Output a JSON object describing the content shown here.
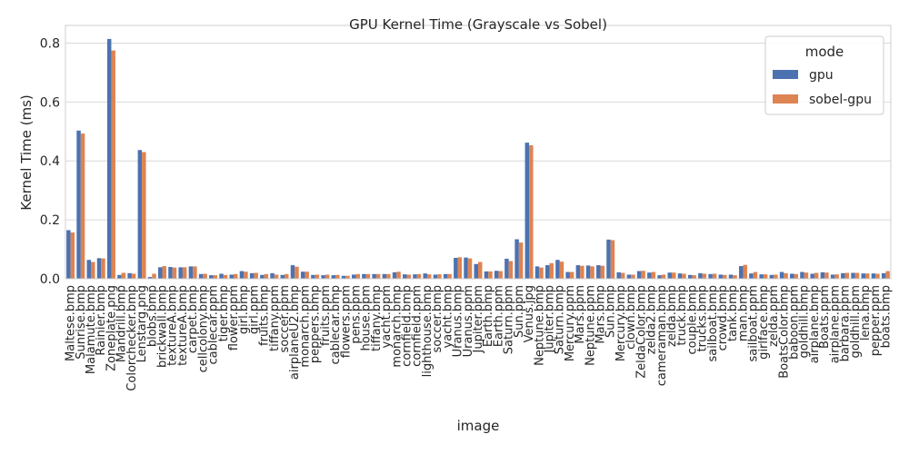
{
  "chart_data": {
    "type": "bar",
    "title": "GPU Kernel Time (Grayscale vs Sobel)",
    "xlabel": "image",
    "ylabel": "Kernel Time (ms)",
    "ylim": [
      0,
      0.86
    ],
    "yticks": [
      0.0,
      0.2,
      0.4,
      0.6,
      0.8
    ],
    "ytick_labels": [
      "0.0",
      "0.2",
      "0.4",
      "0.6",
      "0.8"
    ],
    "grid": true,
    "legend_title": "mode",
    "legend_position": "top-right",
    "categories": [
      "Maltese.bmp",
      "Sunrise.bmp",
      "Malamute.bmp",
      "Rainier.bmp",
      "Zoneplate.png",
      "Mandrill.bmp",
      "Colorchecker.bmp",
      "Lenstarg.png",
      "blobs.bmp",
      "brickwall.bmp",
      "textureA.bmp",
      "textureA.bmp",
      "carpet.bmp",
      "cellcolony.bmp",
      "cablecar.ppm",
      "tiger.bmp",
      "flower.ppm",
      "girl.bmp",
      "girl.ppm",
      "fruits.bmp",
      "tiffany.ppm",
      "soccer.ppm",
      "airplaneU2.bmp",
      "monarch.ppm",
      "peppers.bmp",
      "fruits.ppm",
      "cablecar.bmp",
      "flowers.ppm",
      "pens.ppm",
      "house.ppm",
      "tiffany.bmp",
      "yacht.ppm",
      "monarch.bmp",
      "cornfield.bmp",
      "cornfield.ppm",
      "lighthouse.bmp",
      "soccer.bmp",
      "yacht.bmp",
      "Uranus.bmp",
      "Uranus.ppm",
      "Jupiter.ppm",
      "Earth.bmp",
      "Earth.ppm",
      "Saturn.ppm",
      "Sun.ppm",
      "Venus.jpg",
      "Neptune.bmp",
      "Jupiter.bmp",
      "Saturn.bmp",
      "Mercury.ppm",
      "Mars.ppm",
      "Neptune.ppm",
      "Mars.bmp",
      "Sun.bmp",
      "Mercury.bmp",
      "clown.bmp",
      "ZeldaColor.bmp",
      "zelda2.bmp",
      "cameraman.bmp",
      "zelda.bmp",
      "truck.bmp",
      "couple.bmp",
      "trucks.bmp",
      "sailboat.bmp",
      "crowd.bmp",
      "tank.bmp",
      "man.bmp",
      "sailboat.ppm",
      "girlface.bmp",
      "zelda.ppm",
      "BoatsColor.bmp",
      "baboon.ppm",
      "goldhill.bmp",
      "airplane.bmp",
      "Boats.ppm",
      "airplane.ppm",
      "barbara.ppm",
      "goldhill.ppm",
      "lena.bmp",
      "pepper.ppm",
      "boats.bmp"
    ],
    "series": [
      {
        "name": "gpu",
        "color": "#4c72b0",
        "values": [
          0.165,
          0.503,
          0.064,
          0.07,
          0.814,
          0.013,
          0.019,
          0.437,
          0.006,
          0.039,
          0.04,
          0.039,
          0.042,
          0.016,
          0.012,
          0.017,
          0.014,
          0.026,
          0.019,
          0.013,
          0.019,
          0.013,
          0.046,
          0.024,
          0.013,
          0.012,
          0.012,
          0.01,
          0.014,
          0.016,
          0.016,
          0.016,
          0.022,
          0.015,
          0.015,
          0.018,
          0.014,
          0.016,
          0.071,
          0.072,
          0.05,
          0.025,
          0.027,
          0.068,
          0.134,
          0.462,
          0.042,
          0.046,
          0.064,
          0.023,
          0.046,
          0.045,
          0.046,
          0.133,
          0.022,
          0.014,
          0.026,
          0.021,
          0.012,
          0.021,
          0.018,
          0.013,
          0.019,
          0.016,
          0.014,
          0.014,
          0.043,
          0.018,
          0.015,
          0.013,
          0.023,
          0.017,
          0.023,
          0.017,
          0.022,
          0.014,
          0.019,
          0.02,
          0.018,
          0.018,
          0.019
        ]
      },
      {
        "name": "sobel-gpu",
        "color": "#dd8452",
        "values": [
          0.157,
          0.493,
          0.057,
          0.069,
          0.775,
          0.02,
          0.017,
          0.43,
          0.017,
          0.043,
          0.038,
          0.039,
          0.042,
          0.017,
          0.012,
          0.013,
          0.016,
          0.024,
          0.02,
          0.016,
          0.014,
          0.016,
          0.041,
          0.024,
          0.014,
          0.014,
          0.013,
          0.01,
          0.016,
          0.016,
          0.016,
          0.016,
          0.024,
          0.014,
          0.016,
          0.015,
          0.015,
          0.016,
          0.073,
          0.069,
          0.057,
          0.025,
          0.026,
          0.06,
          0.123,
          0.453,
          0.038,
          0.053,
          0.058,
          0.023,
          0.044,
          0.042,
          0.044,
          0.131,
          0.02,
          0.014,
          0.027,
          0.023,
          0.014,
          0.021,
          0.017,
          0.012,
          0.017,
          0.017,
          0.013,
          0.012,
          0.047,
          0.023,
          0.015,
          0.014,
          0.019,
          0.016,
          0.021,
          0.02,
          0.021,
          0.015,
          0.02,
          0.02,
          0.018,
          0.017,
          0.026
        ]
      }
    ]
  }
}
